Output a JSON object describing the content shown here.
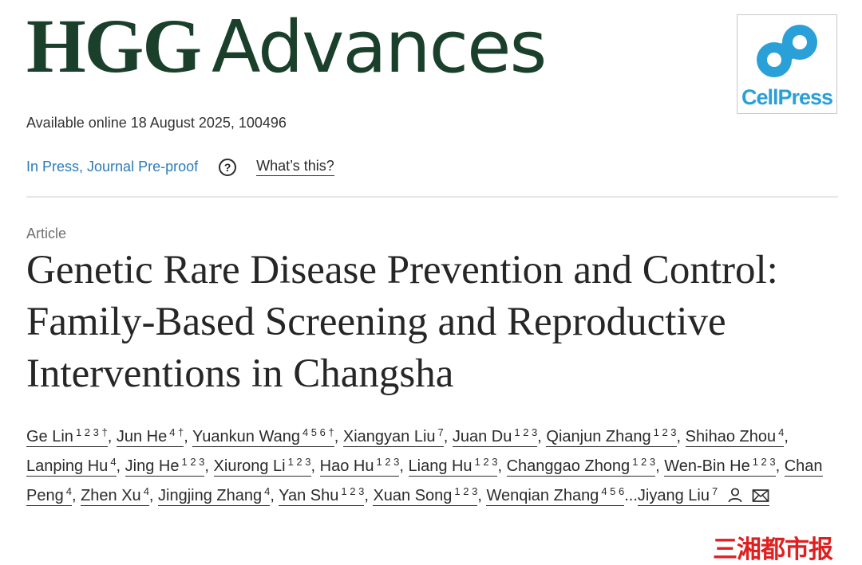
{
  "journal": {
    "name_part1": "HGG",
    "name_part2": "Advances"
  },
  "publisher_logo": {
    "text": "CellPress",
    "color": "#2aa0d8"
  },
  "publication": {
    "availability": "Available online 18 August 2025, 100496"
  },
  "status": {
    "label": "In Press, Journal Pre-proof",
    "help_icon": "question-circle-icon",
    "help_link": "What’s this?"
  },
  "article": {
    "type": "Article",
    "title": "Genetic Rare Disease Prevention and Control: Family-Based Screening and Reproductive Interventions in Changsha"
  },
  "authors": [
    {
      "name": "Ge Lin",
      "sup": "1 2 3 †"
    },
    {
      "name": "Jun He",
      "sup": "4 †"
    },
    {
      "name": "Yuankun Wang",
      "sup": "4 5 6 †"
    },
    {
      "name": "Xiangyan Liu",
      "sup": "7"
    },
    {
      "name": "Juan Du",
      "sup": "1 2 3"
    },
    {
      "name": "Qianjun Zhang",
      "sup": "1 2 3"
    },
    {
      "name": "Shihao Zhou",
      "sup": "4"
    },
    {
      "name": "Lanping Hu",
      "sup": "4"
    },
    {
      "name": "Jing He",
      "sup": "1 2 3"
    },
    {
      "name": "Xiurong Li",
      "sup": "1 2 3"
    },
    {
      "name": "Hao Hu",
      "sup": "1 2 3"
    },
    {
      "name": "Liang Hu",
      "sup": "1 2 3"
    },
    {
      "name": "Changgao Zhong",
      "sup": "1 2 3"
    },
    {
      "name": "Wen-Bin He",
      "sup": "1 2 3"
    },
    {
      "name": "Chan Peng",
      "sup": "4"
    },
    {
      "name": "Zhen Xu",
      "sup": "4"
    },
    {
      "name": "Jingjing Zhang",
      "sup": "4"
    },
    {
      "name": "Yan Shu",
      "sup": "1 2 3"
    },
    {
      "name": "Xuan Song",
      "sup": "1 2 3"
    },
    {
      "name": "Wenqian Zhang",
      "sup": "4 5 6"
    },
    {
      "name": "Jiyang Liu",
      "sup": "7"
    }
  ],
  "authors_ellipsis": "...",
  "author_icons": [
    "person-icon",
    "envelope-icon"
  ],
  "watermark": {
    "text": "三湘都市报",
    "color": "#e02020"
  }
}
